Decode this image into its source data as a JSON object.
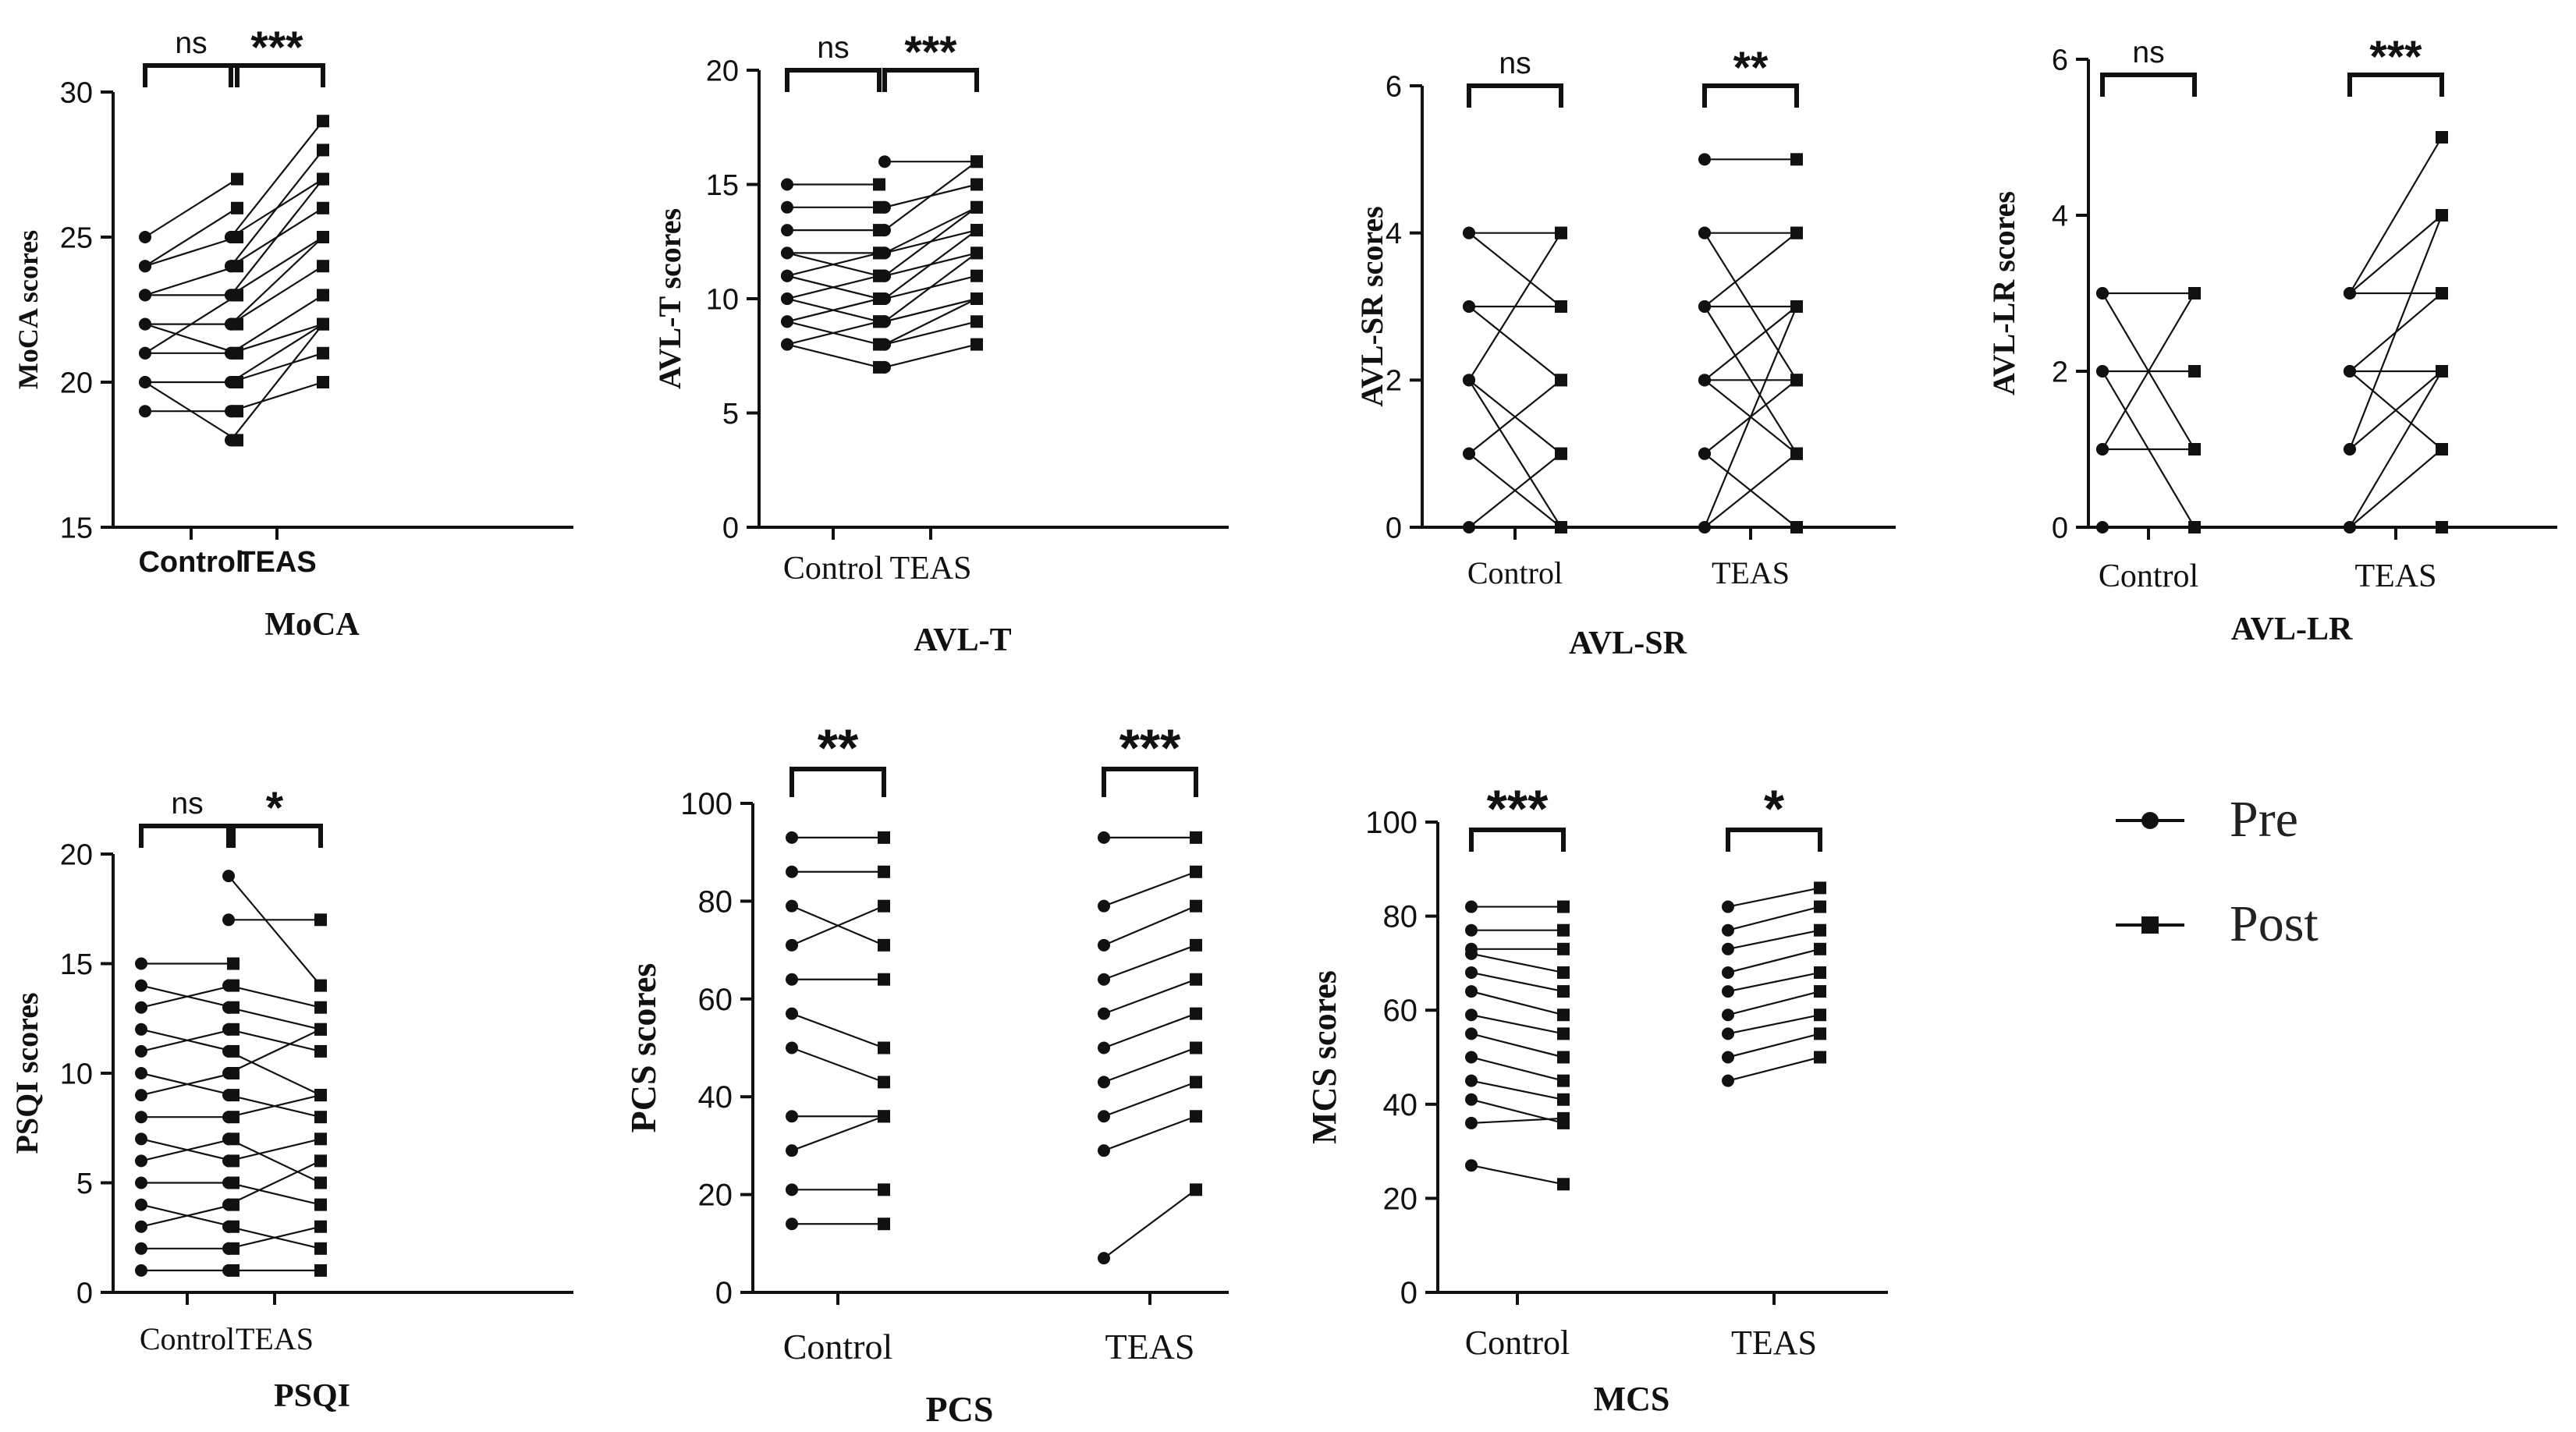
{
  "legend": {
    "pre_label": "Pre",
    "post_label": "Post"
  },
  "chart_data": [
    {
      "type": "paired-line",
      "id": "moca",
      "title": "MoCA",
      "ylabel": "MoCA scores",
      "ylim": [
        15,
        30
      ],
      "yticks": [
        15,
        20,
        25,
        30
      ],
      "categories": [
        "Control",
        "TEAS"
      ],
      "cat_font": "sans",
      "groups": [
        {
          "name": "Control",
          "significance": "ns",
          "pre": [
            25,
            24,
            24,
            23,
            23,
            22,
            22,
            21,
            21,
            20,
            20,
            19
          ],
          "post": [
            27,
            26,
            25,
            23,
            24,
            22,
            21,
            21,
            23,
            20,
            18,
            19
          ]
        },
        {
          "name": "TEAS",
          "significance": "***",
          "pre": [
            25,
            25,
            24,
            24,
            23,
            23,
            22,
            22,
            21,
            21,
            20,
            20,
            19,
            18
          ],
          "post": [
            29,
            27,
            28,
            26,
            27,
            25,
            24,
            25,
            23,
            22,
            22,
            21,
            20,
            22
          ]
        }
      ]
    },
    {
      "type": "paired-line",
      "id": "avlt",
      "title": "AVL-T",
      "ylabel": "AVL-T scores",
      "ylim": [
        0,
        20
      ],
      "yticks": [
        0,
        5,
        10,
        15,
        20
      ],
      "categories": [
        "Control",
        "TEAS"
      ],
      "cat_font": "serif",
      "groups": [
        {
          "name": "Control",
          "significance": "ns",
          "pre": [
            15,
            14,
            13,
            12,
            12,
            11,
            11,
            10,
            10,
            9,
            9,
            8,
            8
          ],
          "post": [
            15,
            14,
            13,
            12,
            11,
            10,
            12,
            11,
            9,
            10,
            8,
            7,
            9
          ]
        },
        {
          "name": "TEAS",
          "significance": "***",
          "pre": [
            16,
            14,
            13,
            12,
            12,
            11,
            11,
            10,
            10,
            9,
            9,
            8,
            8,
            7
          ],
          "post": [
            16,
            15,
            16,
            14,
            13,
            14,
            12,
            13,
            11,
            12,
            10,
            10,
            9,
            8
          ]
        }
      ]
    },
    {
      "type": "paired-line",
      "id": "avlsr",
      "title": "AVL-SR",
      "ylabel": "AVL-SR scores",
      "ylim": [
        0,
        6
      ],
      "yticks": [
        0,
        2,
        4,
        6
      ],
      "categories": [
        "Control",
        "TEAS"
      ],
      "cat_font": "serif",
      "groups": [
        {
          "name": "Control",
          "significance": "ns",
          "pre": [
            4,
            4,
            3,
            3,
            2,
            2,
            2,
            1,
            1,
            0
          ],
          "post": [
            4,
            3,
            3,
            2,
            1,
            0,
            4,
            2,
            0,
            1
          ]
        },
        {
          "name": "TEAS",
          "significance": "**",
          "pre": [
            5,
            4,
            4,
            3,
            3,
            3,
            2,
            2,
            2,
            1,
            1,
            0,
            0
          ],
          "post": [
            5,
            4,
            2,
            4,
            3,
            1,
            3,
            2,
            1,
            2,
            0,
            1,
            3
          ]
        }
      ]
    },
    {
      "type": "paired-line",
      "id": "avllr",
      "title": "AVL-LR",
      "ylabel": "AVL-LR scores",
      "ylim": [
        0,
        6
      ],
      "yticks": [
        0,
        2,
        4,
        6
      ],
      "categories": [
        "Control",
        "TEAS"
      ],
      "cat_font": "serif",
      "groups": [
        {
          "name": "Control",
          "significance": "ns",
          "pre": [
            3,
            3,
            2,
            2,
            1,
            1,
            0
          ],
          "post": [
            3,
            1,
            2,
            0,
            1,
            3,
            0
          ]
        },
        {
          "name": "TEAS",
          "significance": "***",
          "pre": [
            3,
            3,
            3,
            2,
            2,
            2,
            1,
            1,
            0,
            0,
            0
          ],
          "post": [
            5,
            4,
            3,
            3,
            2,
            1,
            4,
            2,
            2,
            1,
            0
          ]
        }
      ]
    },
    {
      "type": "paired-line",
      "id": "psqi",
      "title": "PSQI",
      "ylabel": "PSQI scores",
      "ylim": [
        0,
        20
      ],
      "yticks": [
        0,
        5,
        10,
        15,
        20
      ],
      "categories": [
        "Control",
        "TEAS"
      ],
      "cat_font": "serif",
      "groups": [
        {
          "name": "Control",
          "significance": "ns",
          "pre": [
            15,
            14,
            13,
            12,
            11,
            10,
            9,
            8,
            7,
            6,
            5,
            4,
            3,
            2,
            1
          ],
          "post": [
            15,
            13,
            14,
            11,
            12,
            9,
            10,
            8,
            6,
            7,
            5,
            3,
            4,
            2,
            1
          ]
        },
        {
          "name": "TEAS",
          "significance": "*",
          "pre": [
            19,
            17,
            14,
            13,
            12,
            11,
            10,
            9,
            8,
            7,
            6,
            5,
            4,
            3,
            2,
            1
          ],
          "post": [
            14,
            17,
            13,
            12,
            11,
            9,
            12,
            8,
            9,
            5,
            7,
            4,
            6,
            2,
            3,
            1
          ]
        }
      ]
    },
    {
      "type": "paired-line",
      "id": "pcs",
      "title": "PCS",
      "ylabel": "PCS scores",
      "ylim": [
        0,
        100
      ],
      "yticks": [
        0,
        20,
        40,
        60,
        80,
        100
      ],
      "categories": [
        "Control",
        "TEAS"
      ],
      "cat_font": "serif",
      "groups": [
        {
          "name": "Control",
          "significance": "**",
          "pre": [
            93,
            86,
            79,
            71,
            64,
            57,
            50,
            36,
            29,
            21,
            14
          ],
          "post": [
            93,
            86,
            71,
            79,
            64,
            50,
            43,
            36,
            36,
            21,
            14
          ]
        },
        {
          "name": "TEAS",
          "significance": "***",
          "pre": [
            93,
            79,
            71,
            64,
            57,
            50,
            43,
            36,
            29,
            7
          ],
          "post": [
            93,
            86,
            79,
            71,
            64,
            57,
            50,
            43,
            36,
            21
          ]
        }
      ]
    },
    {
      "type": "paired-line",
      "id": "mcs",
      "title": "MCS",
      "ylabel": "MCS scores",
      "ylim": [
        0,
        100
      ],
      "yticks": [
        0,
        20,
        40,
        60,
        80,
        100
      ],
      "categories": [
        "Control",
        "TEAS"
      ],
      "cat_font": "serif",
      "groups": [
        {
          "name": "Control",
          "significance": "***",
          "pre": [
            82,
            77,
            73,
            72,
            68,
            64,
            59,
            55,
            50,
            45,
            41,
            36,
            27
          ],
          "post": [
            82,
            77,
            73,
            68,
            64,
            59,
            55,
            50,
            45,
            41,
            36,
            37,
            23
          ]
        },
        {
          "name": "TEAS",
          "significance": "*",
          "pre": [
            82,
            77,
            73,
            68,
            64,
            59,
            55,
            50,
            45
          ],
          "post": [
            86,
            82,
            77,
            73,
            68,
            64,
            59,
            55,
            50
          ]
        }
      ]
    }
  ]
}
